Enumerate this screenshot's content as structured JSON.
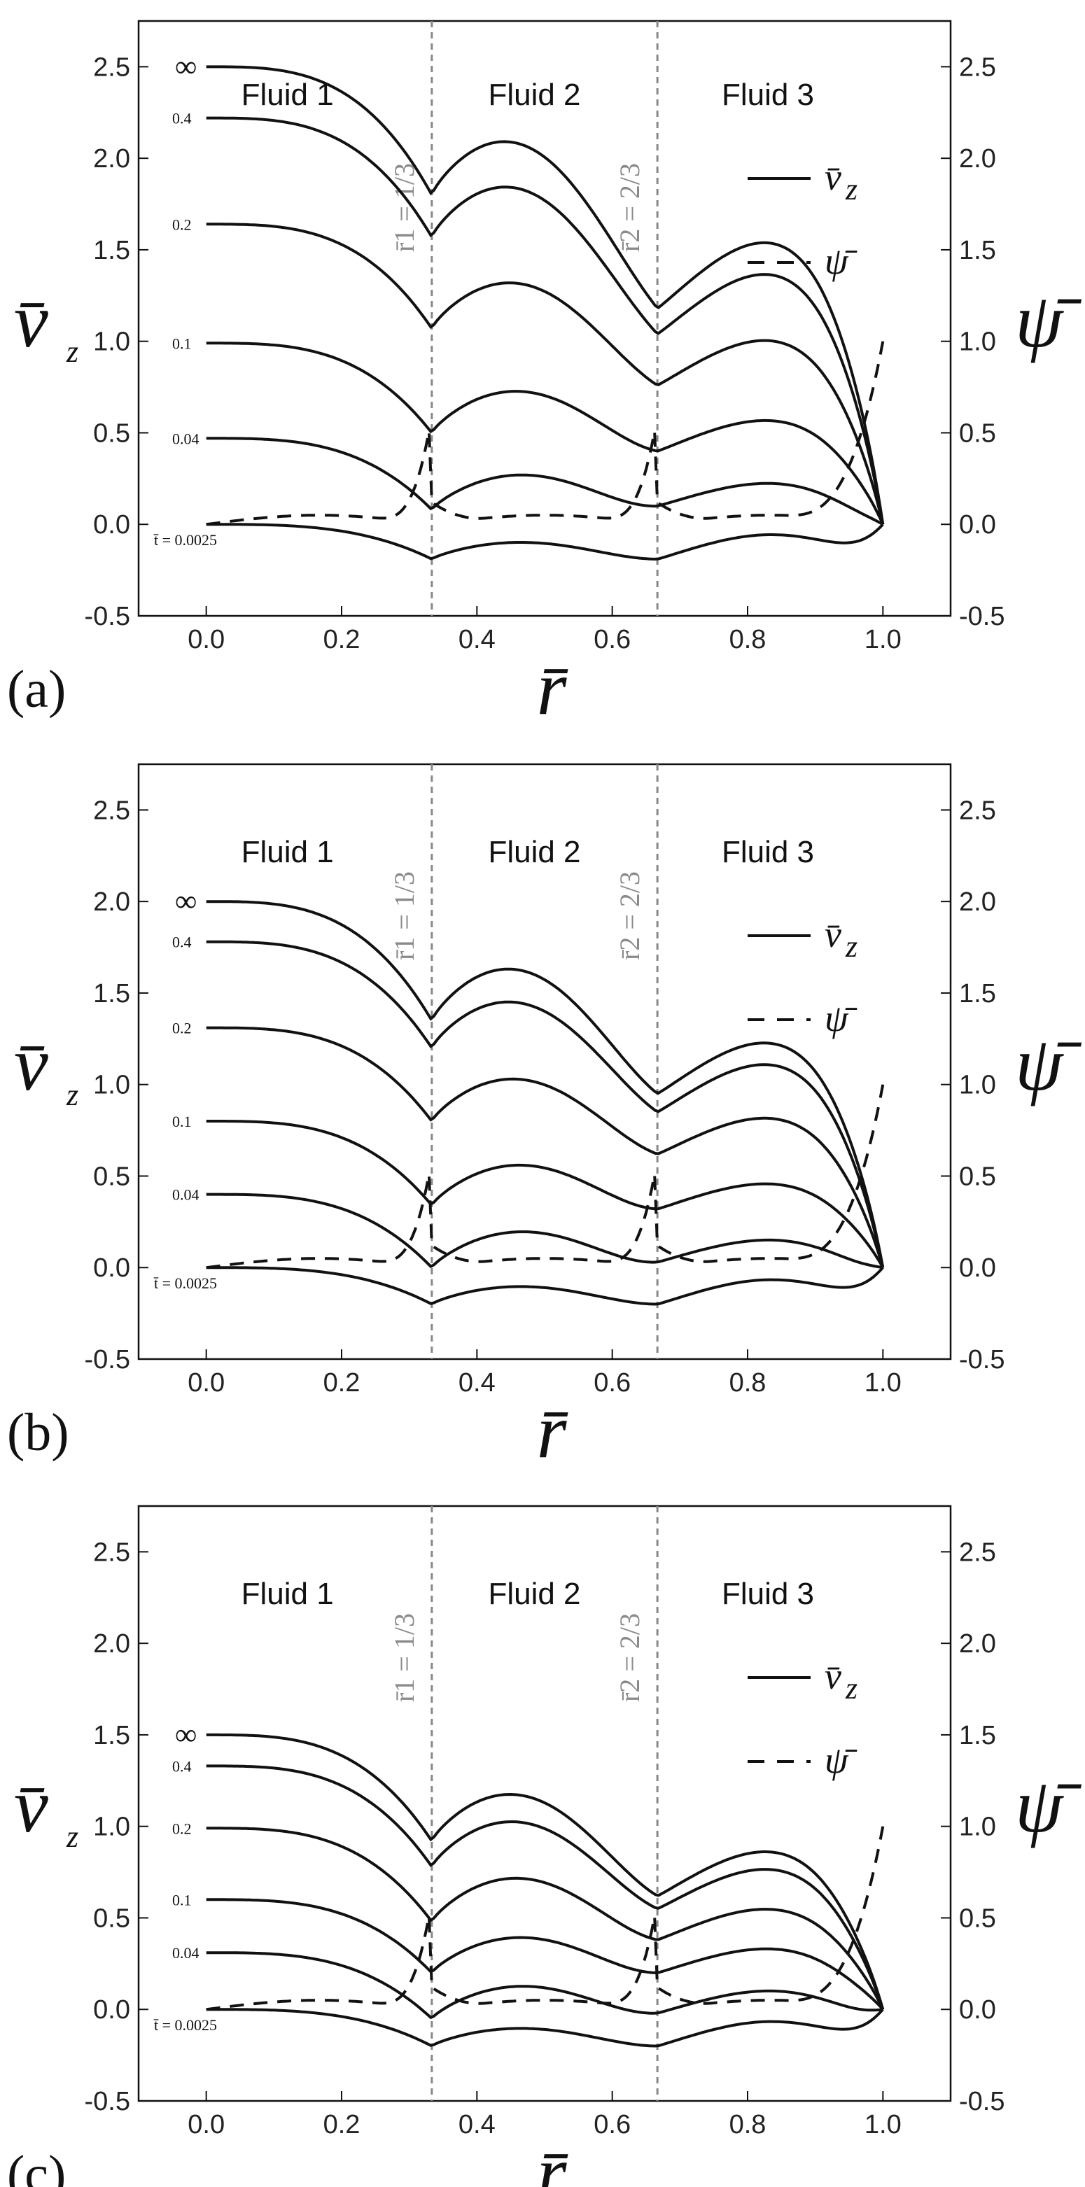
{
  "chart_data": [
    {
      "panel_label": "(a)",
      "type": "line",
      "xlim": [
        -0.1,
        1.1
      ],
      "ylim": [
        -0.5,
        2.75
      ],
      "xticks": [
        "0.0",
        "0.2",
        "0.4",
        "0.6",
        "0.8",
        "1.0"
      ],
      "yticks": [
        "-0.5",
        "0.0",
        "0.5",
        "1.0",
        "1.5",
        "2.0",
        "2.5"
      ],
      "xlabel": "r̄",
      "ylabel_left": "v̄z",
      "ylabel_right": "ψ̄",
      "regions": [
        "Fluid 1",
        "Fluid 2",
        "Fluid 3"
      ],
      "interfaces": [
        {
          "x": 0.3333,
          "label": "r̄1 = 1/3"
        },
        {
          "x": 0.6667,
          "label": "r̄2 = 2/3"
        }
      ],
      "legend": {
        "position": "top-right",
        "entries": [
          {
            "symbol": "v̄z",
            "style": "solid"
          },
          {
            "symbol": "ψ̄",
            "style": "dashed"
          }
        ]
      },
      "series_vz": [
        {
          "label": "∞",
          "values": [
            2.5,
            1.8,
            1.18,
            0.0
          ]
        },
        {
          "label": "0.4",
          "values": [
            2.22,
            1.57,
            1.04,
            0.0
          ]
        },
        {
          "label": "0.2",
          "values": [
            1.64,
            1.07,
            0.76,
            0.0
          ]
        },
        {
          "label": "0.1",
          "values": [
            0.99,
            0.5,
            0.4,
            0.0
          ]
        },
        {
          "label": "0.04",
          "values": [
            0.47,
            0.08,
            0.1,
            0.0
          ]
        },
        {
          "label": "t̄ = 0.0025",
          "values": [
            0.0,
            -0.19,
            -0.19,
            0.0
          ]
        }
      ],
      "psi": {
        "interface_peak": 0.6,
        "wall_value": 1.0
      }
    },
    {
      "panel_label": "(b)",
      "type": "line",
      "xlim": [
        -0.1,
        1.1
      ],
      "ylim": [
        -0.5,
        2.75
      ],
      "xticks": [
        "0.0",
        "0.2",
        "0.4",
        "0.6",
        "0.8",
        "1.0"
      ],
      "yticks": [
        "-0.5",
        "0.0",
        "0.5",
        "1.0",
        "1.5",
        "2.0",
        "2.5"
      ],
      "xlabel": "r̄",
      "ylabel_left": "v̄z",
      "ylabel_right": "ψ̄",
      "regions": [
        "Fluid 1",
        "Fluid 2",
        "Fluid 3"
      ],
      "interfaces": [
        {
          "x": 0.3333,
          "label": "r̄1 = 1/3"
        },
        {
          "x": 0.6667,
          "label": "r̄2 = 2/3"
        }
      ],
      "legend": {
        "position": "top-right",
        "entries": [
          {
            "symbol": "v̄z",
            "style": "solid"
          },
          {
            "symbol": "ψ̄",
            "style": "dashed"
          }
        ]
      },
      "series_vz": [
        {
          "label": "∞",
          "values": [
            2.0,
            1.35,
            0.95,
            0.0
          ]
        },
        {
          "label": "0.4",
          "values": [
            1.78,
            1.2,
            0.85,
            0.0
          ]
        },
        {
          "label": "0.2",
          "values": [
            1.31,
            0.8,
            0.62,
            0.0
          ]
        },
        {
          "label": "0.1",
          "values": [
            0.8,
            0.34,
            0.32,
            0.0
          ]
        },
        {
          "label": "0.04",
          "values": [
            0.4,
            0.0,
            0.03,
            0.0
          ]
        },
        {
          "label": "t̄ = 0.0025",
          "values": [
            0.0,
            -0.2,
            -0.2,
            0.0
          ]
        }
      ],
      "psi": {
        "interface_peak": 0.6,
        "wall_value": 1.0
      }
    },
    {
      "panel_label": "(c)",
      "type": "line",
      "xlim": [
        -0.1,
        1.1
      ],
      "ylim": [
        -0.5,
        2.75
      ],
      "xticks": [
        "0.0",
        "0.2",
        "0.4",
        "0.6",
        "0.8",
        "1.0"
      ],
      "yticks": [
        "-0.5",
        "0.0",
        "0.5",
        "1.0",
        "1.5",
        "2.0",
        "2.5"
      ],
      "xlabel": "r̄",
      "ylabel_left": "v̄z",
      "ylabel_right": "ψ̄",
      "regions": [
        "Fluid 1",
        "Fluid 2",
        "Fluid 3"
      ],
      "interfaces": [
        {
          "x": 0.3333,
          "label": "r̄1 = 1/3"
        },
        {
          "x": 0.6667,
          "label": "r̄2 = 2/3"
        }
      ],
      "legend": {
        "position": "top-right",
        "entries": [
          {
            "symbol": "v̄z",
            "style": "solid"
          },
          {
            "symbol": "ψ̄",
            "style": "dashed"
          }
        ]
      },
      "series_vz": [
        {
          "label": "∞",
          "values": [
            1.5,
            0.92,
            0.62,
            0.0
          ]
        },
        {
          "label": "0.4",
          "values": [
            1.33,
            0.78,
            0.55,
            0.0
          ]
        },
        {
          "label": "0.2",
          "values": [
            0.99,
            0.48,
            0.38,
            0.0
          ]
        },
        {
          "label": "0.1",
          "values": [
            0.6,
            0.2,
            0.2,
            0.0
          ]
        },
        {
          "label": "0.04",
          "values": [
            0.31,
            -0.05,
            -0.02,
            0.0
          ]
        },
        {
          "label": "t̄ = 0.0025",
          "values": [
            0.0,
            -0.2,
            -0.2,
            0.0
          ]
        }
      ],
      "psi": {
        "interface_peak": 0.6,
        "wall_value": 1.0
      }
    }
  ]
}
